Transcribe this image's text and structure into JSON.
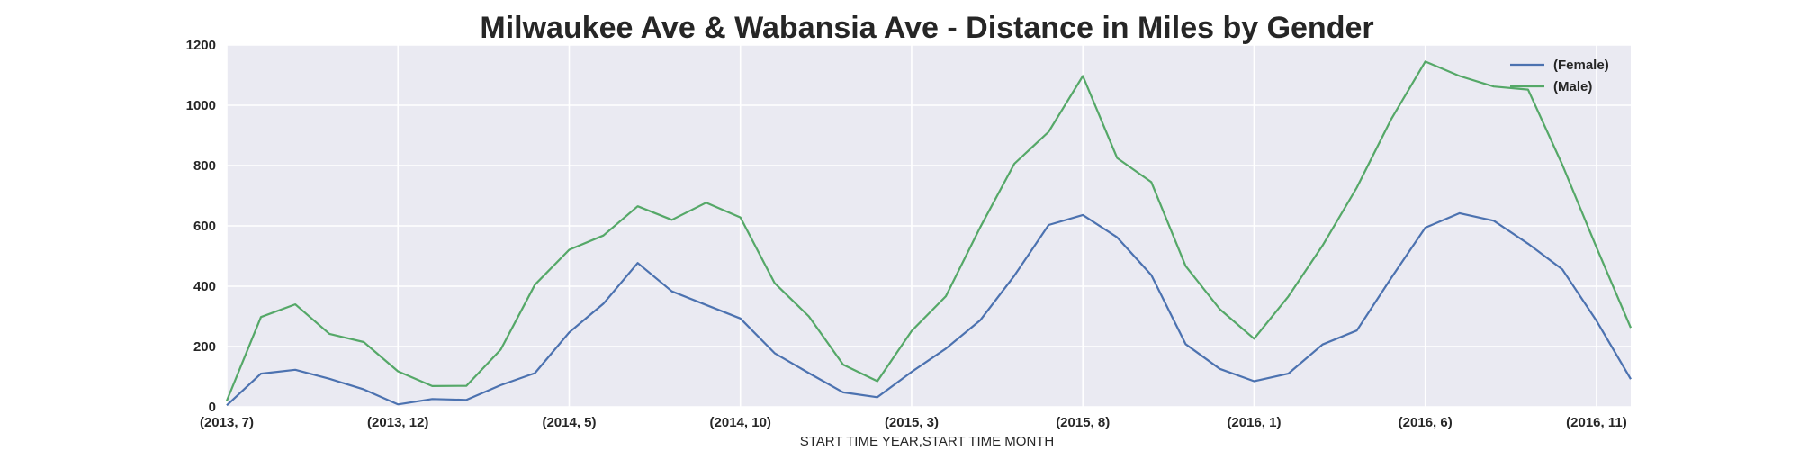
{
  "chart_data": {
    "type": "line",
    "title": "Milwaukee Ave & Wabansia Ave - Distance in Miles by Gender",
    "xlabel": "START TIME YEAR,START TIME MONTH",
    "ylabel": "",
    "ylim": [
      0,
      1200
    ],
    "yticks": [
      0,
      200,
      400,
      600,
      800,
      1000,
      1200
    ],
    "x_tick_labels": [
      {
        "index": 0,
        "label": "(2013, 7)"
      },
      {
        "index": 5,
        "label": "(2013, 12)"
      },
      {
        "index": 10,
        "label": "(2014, 5)"
      },
      {
        "index": 15,
        "label": "(2014, 10)"
      },
      {
        "index": 20,
        "label": "(2015, 3)"
      },
      {
        "index": 25,
        "label": "(2015, 8)"
      },
      {
        "index": 30,
        "label": "(2016, 1)"
      },
      {
        "index": 35,
        "label": "(2016, 6)"
      },
      {
        "index": 40,
        "label": "(2016, 11)"
      }
    ],
    "x": [
      "(2013, 7)",
      "(2013, 8)",
      "(2013, 9)",
      "(2013, 10)",
      "(2013, 11)",
      "(2013, 12)",
      "(2014, 1)",
      "(2014, 2)",
      "(2014, 3)",
      "(2014, 4)",
      "(2014, 5)",
      "(2014, 6)",
      "(2014, 7)",
      "(2014, 8)",
      "(2014, 9)",
      "(2014, 10)",
      "(2014, 11)",
      "(2014, 12)",
      "(2015, 1)",
      "(2015, 2)",
      "(2015, 3)",
      "(2015, 4)",
      "(2015, 5)",
      "(2015, 6)",
      "(2015, 7)",
      "(2015, 8)",
      "(2015, 9)",
      "(2015, 10)",
      "(2015, 11)",
      "(2015, 12)",
      "(2016, 1)",
      "(2016, 2)",
      "(2016, 3)",
      "(2016, 4)",
      "(2016, 5)",
      "(2016, 6)",
      "(2016, 7)",
      "(2016, 8)",
      "(2016, 9)",
      "(2016, 10)",
      "(2016, 11)",
      "(2016, 12)"
    ],
    "series": [
      {
        "name": "(Female)",
        "color": "#4c72b0",
        "values": [
          5,
          110,
          123,
          93,
          58,
          8,
          26,
          23,
          72,
          112,
          247,
          342,
          477,
          383,
          338,
          293,
          178,
          112,
          48,
          32,
          116,
          193,
          287,
          435,
          603,
          636,
          562,
          437,
          208,
          126,
          85,
          110,
          207,
          253,
          427,
          594,
          642,
          617,
          541,
          456,
          285,
          92
        ]
      },
      {
        "name": "(Male)",
        "color": "#55a868",
        "values": [
          20,
          298,
          340,
          242,
          215,
          118,
          69,
          70,
          190,
          405,
          521,
          568,
          665,
          620,
          677,
          628,
          410,
          300,
          140,
          85,
          252,
          367,
          595,
          806,
          912,
          1097,
          825,
          745,
          467,
          324,
          226,
          366,
          535,
          727,
          953,
          1145,
          1097,
          1062,
          1052,
          803,
          528,
          262
        ]
      }
    ],
    "legend_position": "top-right",
    "grid": true,
    "background": "#eaeaf2"
  }
}
